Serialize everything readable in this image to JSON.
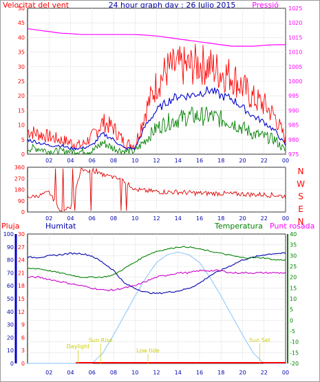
{
  "header": {
    "left_label": "Velocitat del vent",
    "title": "24 hour graph day : 26 Julio 2015",
    "right_label": "Pressió"
  },
  "colors": {
    "wind_avg": "#0000cc",
    "wind_gust": "#ff0000",
    "wind_low": "#008000",
    "pressure": "#ff00ff",
    "direction": "#dd0000",
    "humidity": "#0000aa",
    "temperature": "#008000",
    "dewpoint": "#cc00cc",
    "rain": "#ff0000",
    "solar": "#99ccff",
    "sun_labels": "#cccc00"
  },
  "x_tick_labels": [
    "02",
    "04",
    "06",
    "08",
    "10",
    "12",
    "14",
    "16",
    "18",
    "20",
    "22",
    "00"
  ],
  "chart_data": [
    {
      "type": "line",
      "title": "24 hour graph day : 26 Julio 2015",
      "ylabel_left": "Velocitat del vent",
      "ylabel_right": "Pressió",
      "ylim_left": [
        0,
        50
      ],
      "ylim_right": [
        975,
        1025
      ],
      "yticks_left": [
        "0",
        "5",
        "10",
        "15",
        "20",
        "25",
        "30",
        "35",
        "40",
        "45",
        "50"
      ],
      "yticks_right": [
        "975",
        "980",
        "985",
        "990",
        "995",
        "1000",
        "1005",
        "1010",
        "1015",
        "1020",
        "1025"
      ],
      "grid": true,
      "x_hours": [
        0,
        1,
        2,
        3,
        4,
        5,
        6,
        7,
        8,
        9,
        10,
        11,
        12,
        13,
        14,
        15,
        16,
        17,
        18,
        19,
        20,
        21,
        22,
        23,
        24
      ],
      "series": [
        {
          "key": "gust",
          "values": [
            8,
            7,
            6,
            5,
            4,
            3,
            6,
            11,
            9,
            4,
            3,
            15,
            24,
            29,
            30,
            30,
            31,
            30,
            28,
            27,
            23,
            19,
            17,
            13,
            5
          ]
        },
        {
          "key": "avg",
          "values": [
            5,
            4,
            3,
            3,
            2,
            2,
            3,
            7,
            5,
            2,
            2,
            10,
            15,
            18,
            20,
            20,
            21,
            22,
            20,
            19,
            16,
            13,
            11,
            8,
            3
          ]
        },
        {
          "key": "low",
          "values": [
            2,
            2,
            1,
            1,
            1,
            1,
            1,
            4,
            2,
            1,
            1,
            5,
            9,
            11,
            12,
            13,
            13,
            13,
            12,
            11,
            9,
            7,
            6,
            5,
            1
          ]
        },
        {
          "key": "pressure",
          "values": [
            1018,
            1017.5,
            1017,
            1016.5,
            1016.3,
            1016,
            1016,
            1016,
            1016,
            1016,
            1016,
            1015.8,
            1015.5,
            1015,
            1014.5,
            1014,
            1013.5,
            1013,
            1012.5,
            1012,
            1012,
            1012,
            1012.3,
            1012.5,
            1012.5
          ]
        }
      ]
    },
    {
      "type": "line",
      "ylabel_left": "Wind direction (degrees)",
      "ylim": [
        0,
        360
      ],
      "yticks": [
        "0",
        "90",
        "180",
        "270",
        "360"
      ],
      "right_labels": [
        "N",
        "W",
        "S",
        "E",
        "N"
      ],
      "series": [
        {
          "key": "direction",
          "values": [
            120,
            130,
            160,
            20,
            30,
            340,
            330,
            300,
            280,
            250,
            180,
            170,
            165,
            160,
            160,
            155,
            150,
            150,
            150,
            145,
            145,
            140,
            140,
            135,
            125
          ]
        }
      ]
    },
    {
      "type": "line",
      "legend": [
        "Pluja",
        "Humitat",
        "Temperatura",
        "Punt rosada"
      ],
      "axis_rain": {
        "label": "Pluja",
        "ylim": [
          0,
          30
        ],
        "ticks": [
          "0",
          "3",
          "6",
          "9",
          "12",
          "15",
          "18",
          "21",
          "24",
          "27",
          "30"
        ]
      },
      "axis_humidity": {
        "label": "Humitat",
        "ylim": [
          0,
          100
        ],
        "ticks": [
          "0",
          "10",
          "20",
          "30",
          "40",
          "50",
          "60",
          "70",
          "80",
          "90",
          "100"
        ]
      },
      "axis_temperature": {
        "label": "Temperatura",
        "ylim": [
          -20,
          40
        ],
        "ticks": [
          "-20",
          "-15",
          "-10",
          "-5",
          "0",
          "5",
          "10",
          "15",
          "20",
          "25",
          "30",
          "35",
          "40"
        ]
      },
      "annotations": [
        {
          "text": "Daylight",
          "hour": 4.7
        },
        {
          "text": "Sun Rise",
          "hour": 6.8
        },
        {
          "text": "Low tide",
          "hour": 11.2
        },
        {
          "text": "Sun Set",
          "hour": 21.6
        }
      ],
      "series": [
        {
          "key": "humidity",
          "values": [
            82,
            82,
            83,
            84,
            85,
            85,
            83,
            78,
            72,
            62,
            58,
            55,
            54,
            55,
            56,
            58,
            62,
            68,
            72,
            76,
            80,
            82,
            84,
            85,
            85
          ]
        },
        {
          "key": "temperature",
          "values": [
            24,
            24,
            23,
            22,
            21,
            20,
            20,
            20,
            21,
            24,
            27,
            30,
            32,
            33,
            34,
            34,
            33,
            32,
            31,
            30,
            29,
            29,
            29,
            28,
            28
          ]
        },
        {
          "key": "dewpoint",
          "values": [
            20,
            20,
            19,
            18,
            17,
            16,
            15,
            14,
            14,
            15,
            16,
            18,
            20,
            21,
            22,
            22,
            23,
            23,
            23,
            22,
            22,
            22,
            22,
            22,
            22
          ]
        },
        {
          "key": "rain",
          "values": [
            0,
            0,
            0,
            0,
            0,
            0,
            0,
            0,
            0,
            0,
            0,
            0,
            0,
            0,
            0,
            0,
            0,
            0,
            0,
            0,
            0,
            0,
            0,
            0,
            0
          ]
        },
        {
          "key": "solar",
          "values": [
            0,
            0,
            0,
            0,
            0,
            0,
            0,
            0.08,
            0.22,
            0.37,
            0.52,
            0.66,
            0.78,
            0.84,
            0.86,
            0.84,
            0.78,
            0.66,
            0.52,
            0.37,
            0.22,
            0.08,
            0,
            0,
            0
          ]
        }
      ]
    }
  ]
}
